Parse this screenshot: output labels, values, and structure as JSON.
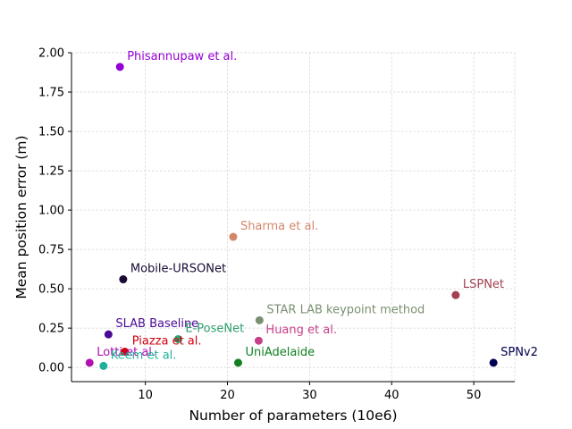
{
  "chart_data": {
    "type": "scatter",
    "title": "",
    "xlabel": "Number of parameters (10e6)",
    "ylabel": "Mean position error (m)",
    "xlim": [
      1,
      55
    ],
    "ylim": [
      -0.09,
      2.0
    ],
    "xticks": [
      10,
      20,
      30,
      40,
      50
    ],
    "yticks": [
      0.0,
      0.25,
      0.5,
      0.75,
      1.0,
      1.25,
      1.5,
      1.75,
      2.0
    ],
    "xtick_labels": [
      "10",
      "20",
      "30",
      "40",
      "50"
    ],
    "ytick_labels": [
      "0.00",
      "0.25",
      "0.50",
      "0.75",
      "1.00",
      "1.25",
      "1.50",
      "1.75",
      "2.00"
    ],
    "grid": true,
    "points": [
      {
        "label": "Phisannupaw et al.",
        "x": 6.9,
        "y": 1.91,
        "color": "#9400d3"
      },
      {
        "label": "Sharma et al.",
        "x": 20.7,
        "y": 0.83,
        "color": "#d2876a"
      },
      {
        "label": "Mobile-URSONet",
        "x": 7.3,
        "y": 0.56,
        "color": "#1a0a33"
      },
      {
        "label": "LSPNet",
        "x": 47.8,
        "y": 0.46,
        "color": "#a04050"
      },
      {
        "label": "STAR LAB keypoint method",
        "x": 23.9,
        "y": 0.3,
        "color": "#7a9070"
      },
      {
        "label": "SLAB Baseline",
        "x": 5.5,
        "y": 0.21,
        "color": "#4b0a96"
      },
      {
        "label": "E-PoseNet",
        "x": 14.0,
        "y": 0.18,
        "color": "#2ea070"
      },
      {
        "label": "Huang et al.",
        "x": 23.8,
        "y": 0.17,
        "color": "#c8408a"
      },
      {
        "label": "Piazza et al.",
        "x": 7.5,
        "y": 0.1,
        "color": "#d00010"
      },
      {
        "label": "Lotti et al.",
        "x": 3.2,
        "y": 0.03,
        "color": "#b010b0"
      },
      {
        "label": "Keem et al.",
        "x": 4.9,
        "y": 0.01,
        "color": "#20b09a"
      },
      {
        "label": "UniAdelaide",
        "x": 21.3,
        "y": 0.03,
        "color": "#108020"
      },
      {
        "label": "SPNv2",
        "x": 52.4,
        "y": 0.03,
        "color": "#000050"
      }
    ]
  }
}
